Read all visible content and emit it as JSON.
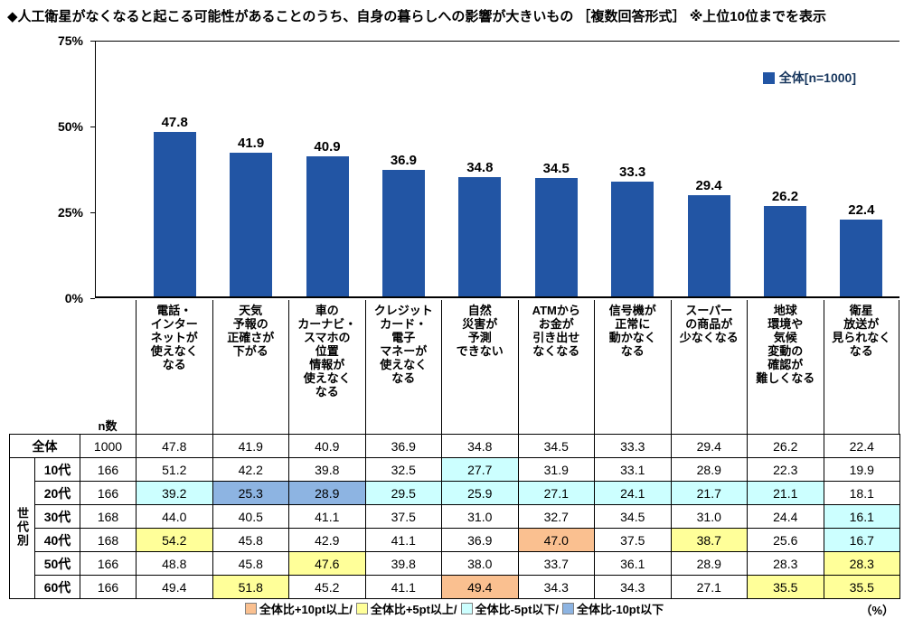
{
  "title": "◆人工衛星がなくなると起こる可能性があることのうち、自身の暮らしへの影響が大きいもの ［複数回答形式］ ※上位10位までを表示",
  "legend": {
    "label": "全体[n=1000]",
    "color": "#2255A4"
  },
  "chart_data": {
    "type": "bar",
    "title": "人工衛星がなくなると起こる可能性があることのうち、自身の暮らしへの影響が大きいもの（複数回答・上位10位）",
    "categories": [
      "電話・インターネットが使えなくなる",
      "天気予報の正確さが下がる",
      "車のカーナビ・スマホの位置情報が使えなくなる",
      "クレジットカード・電子マネーが使えなくなる",
      "自然災害が予測できない",
      "ATMからお金が引き出せなくなる",
      "信号機が正常に動かなくなる",
      "スーパーの商品が少なくなる",
      "地球環境や気候変動の確認が難しくなる",
      "衛星放送が見られなくなる"
    ],
    "category_labels_wrapped": [
      "電話・\nインター\nネットが\n使えなく\nなる",
      "天気\n予報の\n正確さが\n下がる",
      "車の\nカーナビ・\nスマホの\n位置\n情報が\n使えなく\nなる",
      "クレジット\nカード・\n電子\nマネーが\n使えなく\nなる",
      "自然\n災害が\n予測\nできない",
      "ATMから\nお金が\n引き出せ\nなくなる",
      "信号機が\n正常に\n動かなく\nなる",
      "スーパー\nの商品が\n少なくなる",
      "地球\n環境や\n気候\n変動の\n確認が\n難しくなる",
      "衛星\n放送が\n見られなく\nなる"
    ],
    "values": [
      47.8,
      41.9,
      40.9,
      36.9,
      34.8,
      34.5,
      33.3,
      29.4,
      26.2,
      22.4
    ],
    "series_name": "全体[n=1000]",
    "ylim": [
      0,
      75
    ],
    "yticks": [
      "75%",
      "50%",
      "25%",
      "0%"
    ],
    "grid": false,
    "legend_position": "top-right",
    "bar_color": "#2255A4"
  },
  "table": {
    "n_header": "n数",
    "group_label": "世代別",
    "rows": [
      {
        "label": "全体",
        "n": "1000",
        "values": [
          "47.8",
          "41.9",
          "40.9",
          "36.9",
          "34.8",
          "34.5",
          "33.3",
          "29.4",
          "26.2",
          "22.4"
        ],
        "highlights": [
          "",
          "",
          "",
          "",
          "",
          "",
          "",
          "",
          "",
          ""
        ]
      },
      {
        "label": "10代",
        "n": "166",
        "values": [
          "51.2",
          "42.2",
          "39.8",
          "32.5",
          "27.7",
          "31.9",
          "33.1",
          "28.9",
          "22.3",
          "19.9"
        ],
        "highlights": [
          "",
          "",
          "",
          "",
          "cyan",
          "",
          "",
          "",
          "",
          ""
        ]
      },
      {
        "label": "20代",
        "n": "166",
        "values": [
          "39.2",
          "25.3",
          "28.9",
          "29.5",
          "25.9",
          "27.1",
          "24.1",
          "21.7",
          "21.1",
          "18.1"
        ],
        "highlights": [
          "cyan",
          "blue",
          "blue",
          "cyan",
          "cyan",
          "cyan",
          "cyan",
          "cyan",
          "cyan",
          ""
        ]
      },
      {
        "label": "30代",
        "n": "168",
        "values": [
          "44.0",
          "40.5",
          "41.1",
          "37.5",
          "31.0",
          "32.7",
          "34.5",
          "31.0",
          "24.4",
          "16.1"
        ],
        "highlights": [
          "",
          "",
          "",
          "",
          "",
          "",
          "",
          "",
          "",
          "cyan"
        ]
      },
      {
        "label": "40代",
        "n": "168",
        "values": [
          "54.2",
          "45.8",
          "42.9",
          "41.1",
          "36.9",
          "47.0",
          "37.5",
          "38.7",
          "25.6",
          "16.7"
        ],
        "highlights": [
          "yellow",
          "",
          "",
          "",
          "",
          "orange",
          "",
          "yellow",
          "",
          "cyan"
        ]
      },
      {
        "label": "50代",
        "n": "166",
        "values": [
          "48.8",
          "45.8",
          "47.6",
          "39.8",
          "38.0",
          "33.7",
          "36.1",
          "28.9",
          "28.3",
          "28.3"
        ],
        "highlights": [
          "",
          "",
          "yellow",
          "",
          "",
          "",
          "",
          "",
          "",
          "yellow"
        ]
      },
      {
        "label": "60代",
        "n": "166",
        "values": [
          "49.4",
          "51.8",
          "45.2",
          "41.1",
          "49.4",
          "34.3",
          "34.3",
          "27.1",
          "35.5",
          "35.5"
        ],
        "highlights": [
          "",
          "yellow",
          "",
          "",
          "orange",
          "",
          "",
          "",
          "yellow",
          "yellow"
        ]
      }
    ]
  },
  "bottom_legend": {
    "items": [
      {
        "label": "全体比+10pt以上/",
        "color": "#FAC090"
      },
      {
        "label": "全体比+5pt以上/",
        "color": "#FFFF99"
      },
      {
        "label": "全体比-5pt以下/",
        "color": "#CCFFFF"
      },
      {
        "label": "全体比-10pt以下",
        "color": "#8DB4E2"
      }
    ],
    "unit": "（%）"
  }
}
